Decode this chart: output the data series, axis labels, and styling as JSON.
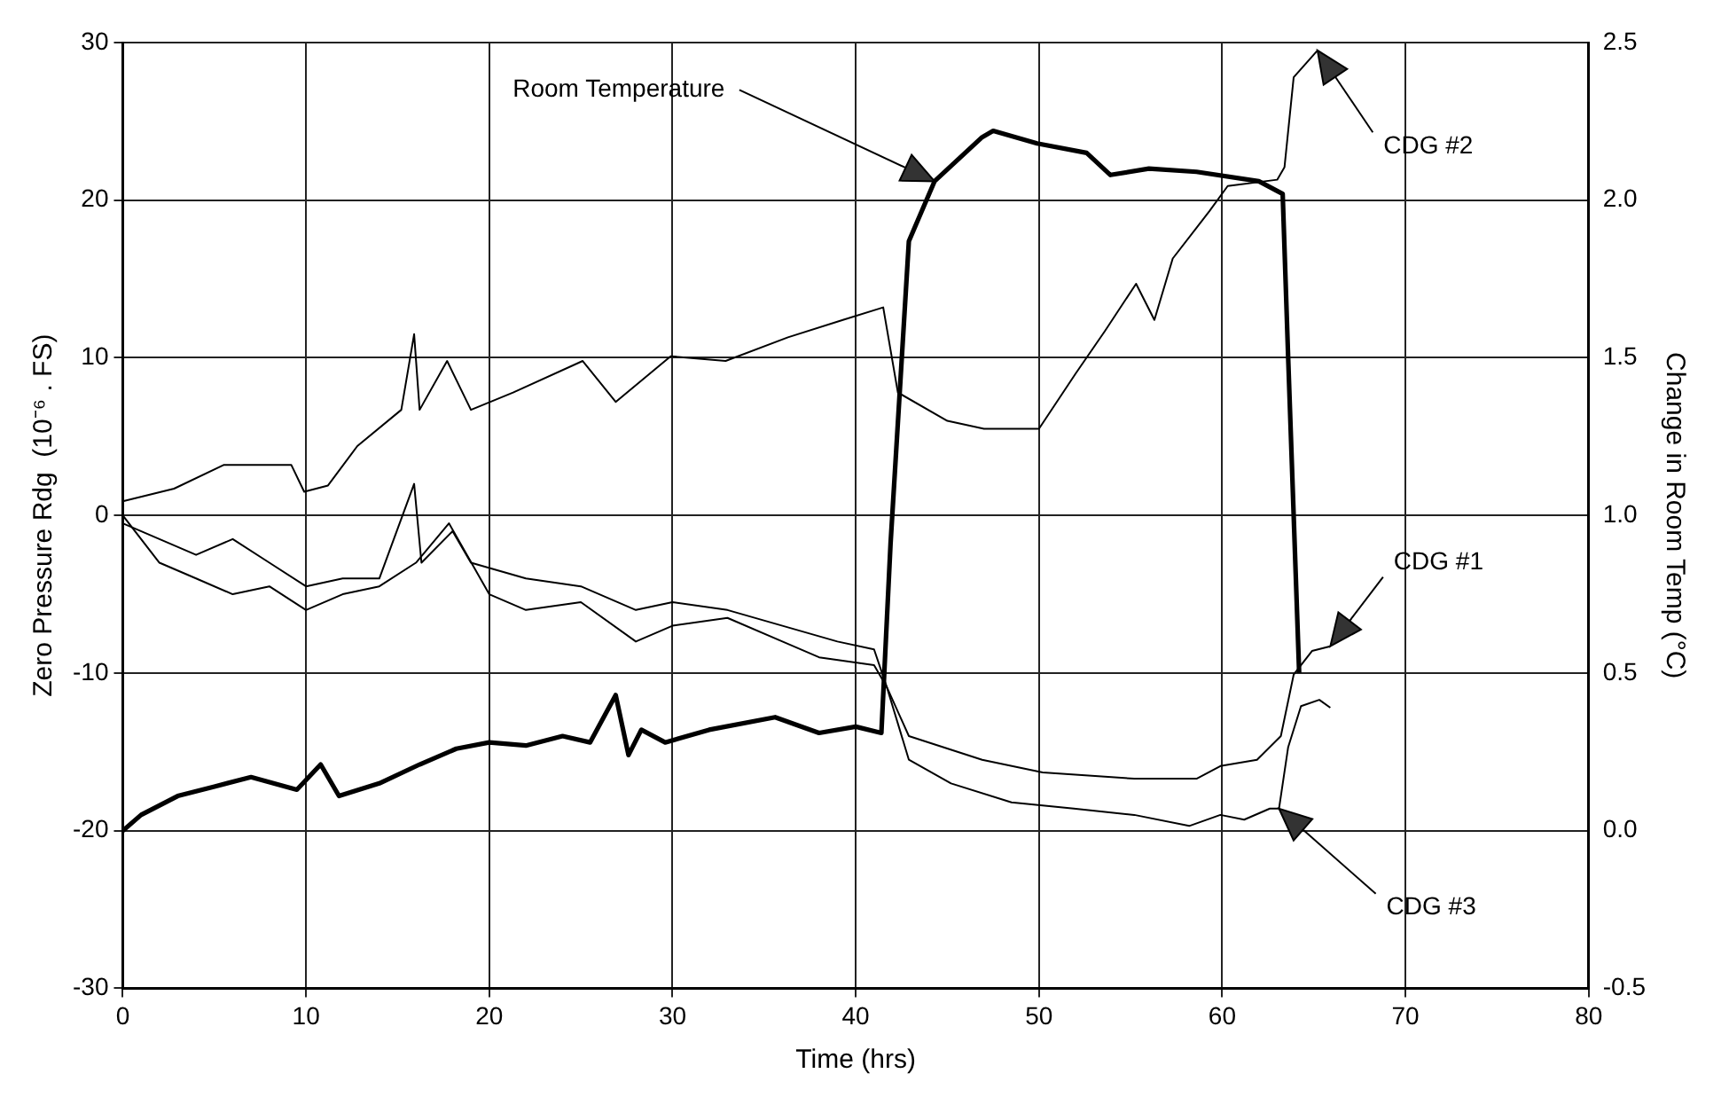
{
  "chart_data": {
    "type": "line",
    "xlabel": "Time (hrs)",
    "ylabel": "Zero Pressure Rdg  (10⁻⁶ . FS)",
    "y2label": "Change in Room Temp (°C)",
    "xlim": [
      0,
      80
    ],
    "xticks": [
      0,
      10,
      20,
      30,
      40,
      50,
      60,
      70,
      80
    ],
    "ylim": [
      -30,
      30
    ],
    "yticks": [
      -30,
      -20,
      -10,
      0,
      10,
      20,
      30
    ],
    "y2lim": [
      -0.5,
      2.5
    ],
    "y2ticks": [
      -0.5,
      {
        "value": 0,
        "label": "0.0"
      },
      0.5,
      {
        "value": 1,
        "label": "1.0"
      },
      1.5,
      {
        "value": 2,
        "label": "2.0"
      },
      2.5
    ],
    "grid": true,
    "legend": false,
    "marker": "none",
    "line_style": "solid",
    "series": [
      {
        "color": "#000000",
        "axis": "y2",
        "x": [
          0,
          1,
          3,
          5,
          7,
          9.5,
          10.8,
          11.8,
          14,
          16.2,
          18.2,
          20,
          22,
          24,
          25.5,
          26.9,
          27.6,
          28.3,
          29.6,
          32,
          35.6,
          38,
          40,
          41.4,
          41.9,
          42.9,
          44.3,
          46.9,
          47.5,
          49.9,
          52.6,
          53.9,
          56,
          58.6,
          62,
          63.3,
          63.6,
          64.2
        ],
        "values": [
          0,
          0.05,
          0.11,
          0.14,
          0.17,
          0.13,
          0.21,
          0.11,
          0.15,
          0.21,
          0.26,
          0.28,
          0.27,
          0.3,
          0.28,
          0.43,
          0.24,
          0.32,
          0.28,
          0.32,
          0.36,
          0.31,
          0.33,
          0.31,
          0.91,
          1.87,
          2.06,
          2.2,
          2.22,
          2.18,
          2.15,
          2.08,
          2.1,
          2.09,
          2.06,
          2.02,
          1.5,
          0.5
        ]
      },
      {
        "color": "#000000",
        "x": [
          0,
          2,
          4,
          6,
          8,
          10,
          12,
          14,
          15.9,
          16.3,
          18,
          19,
          22,
          25,
          28,
          30,
          33,
          36,
          39,
          41,
          41.7,
          42.9,
          46.9,
          50.2,
          55.2,
          58.6,
          59.9,
          61.9,
          63.2,
          63.9,
          64.9,
          65.9
        ],
        "values": [
          -0.5,
          -1.5,
          -2.5,
          -1.5,
          -3,
          -4.5,
          -4,
          -4,
          2,
          -3,
          -1,
          -3,
          -4,
          -4.5,
          -6,
          -5.5,
          -6,
          -7,
          -8,
          -8.5,
          -10.9,
          -14,
          -15.5,
          -16.3,
          -16.7,
          -16.7,
          -15.9,
          -15.5,
          -14,
          -10.1,
          -8.6,
          -8.3
        ]
      },
      {
        "color": "#000000",
        "x": [
          0,
          2.8,
          5.5,
          9.2,
          9.9,
          11.2,
          12.8,
          15.2,
          15.9,
          16.2,
          17.7,
          19,
          21.3,
          25.1,
          26.9,
          29.9,
          32.9,
          36.3,
          39.3,
          41.5,
          42.3,
          45,
          47,
          50,
          52,
          53.6,
          55.3,
          56.3,
          57.3,
          59.3,
          60.3,
          63,
          63.4,
          63.9,
          65.2
        ],
        "values": [
          0.9,
          1.7,
          3.2,
          3.2,
          1.5,
          1.9,
          4.4,
          6.7,
          11.5,
          6.7,
          9.8,
          6.7,
          7.8,
          9.8,
          7.2,
          10.1,
          9.8,
          11.3,
          12.4,
          13.2,
          7.8,
          6,
          5.5,
          5.5,
          9,
          11.7,
          14.7,
          12.4,
          16.3,
          19.3,
          20.9,
          21.3,
          22.1,
          27.8,
          29.5
        ]
      },
      {
        "color": "#000000",
        "x": [
          0,
          2,
          4,
          6,
          8,
          10,
          12,
          14,
          16,
          17.8,
          20,
          22,
          25,
          28,
          30,
          33,
          36,
          38,
          41,
          41.7,
          42.9,
          45.2,
          48.5,
          51.9,
          55.2,
          58.2,
          59.9,
          61.2,
          62.6,
          63.1,
          63.6,
          64.3,
          65.3,
          65.9
        ],
        "values": [
          0,
          -3,
          -4,
          -5,
          -4.5,
          -6,
          -5,
          -4.5,
          -3,
          -0.5,
          -5,
          -6,
          -5.5,
          -8,
          -7,
          -6.5,
          -8,
          -9,
          -9.5,
          -10.9,
          -15.5,
          -17,
          -18.2,
          -18.6,
          -19,
          -19.7,
          -19,
          -19.3,
          -18.6,
          -18.6,
          -14.7,
          -12.1,
          -11.7,
          -12.2
        ]
      }
    ],
    "annotations": [
      "Room Temperature",
      "CDG #2",
      "CDG #1",
      "CDG #3"
    ]
  }
}
